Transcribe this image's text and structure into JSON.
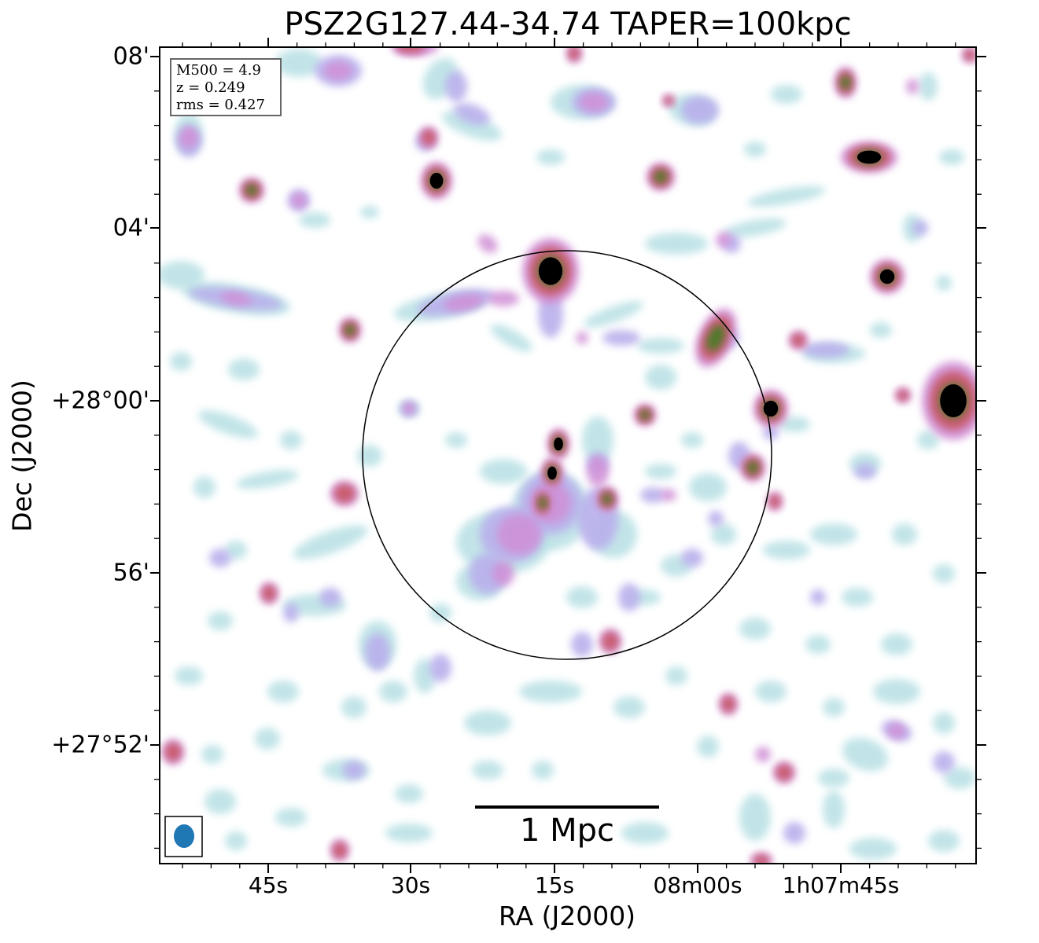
{
  "figure": {
    "title": "PSZ2G127.44-34.74 TAPER=100kpc",
    "xlabel": "RA (J2000)",
    "ylabel": "Dec (J2000)",
    "x_ticks": [
      "45s",
      "30s",
      "15s",
      "08m00s",
      "1h07m45s"
    ],
    "y_ticks": [
      "08'",
      "04'",
      "+28°00'",
      "56'",
      "+27°52'"
    ],
    "scalebar_label": "1 Mpc"
  },
  "info_box": {
    "line1": "M500 = 4.9",
    "line2": "z = 0.249",
    "line3": "rms = 0.427"
  },
  "colors": {
    "faint": "#b8e0e4",
    "low": "#b9b0ec",
    "mid": "#d090d6",
    "high": "#c95a6c",
    "peak": "#4f7a2c",
    "core": "#000000",
    "beam": "#1f77b4"
  }
}
